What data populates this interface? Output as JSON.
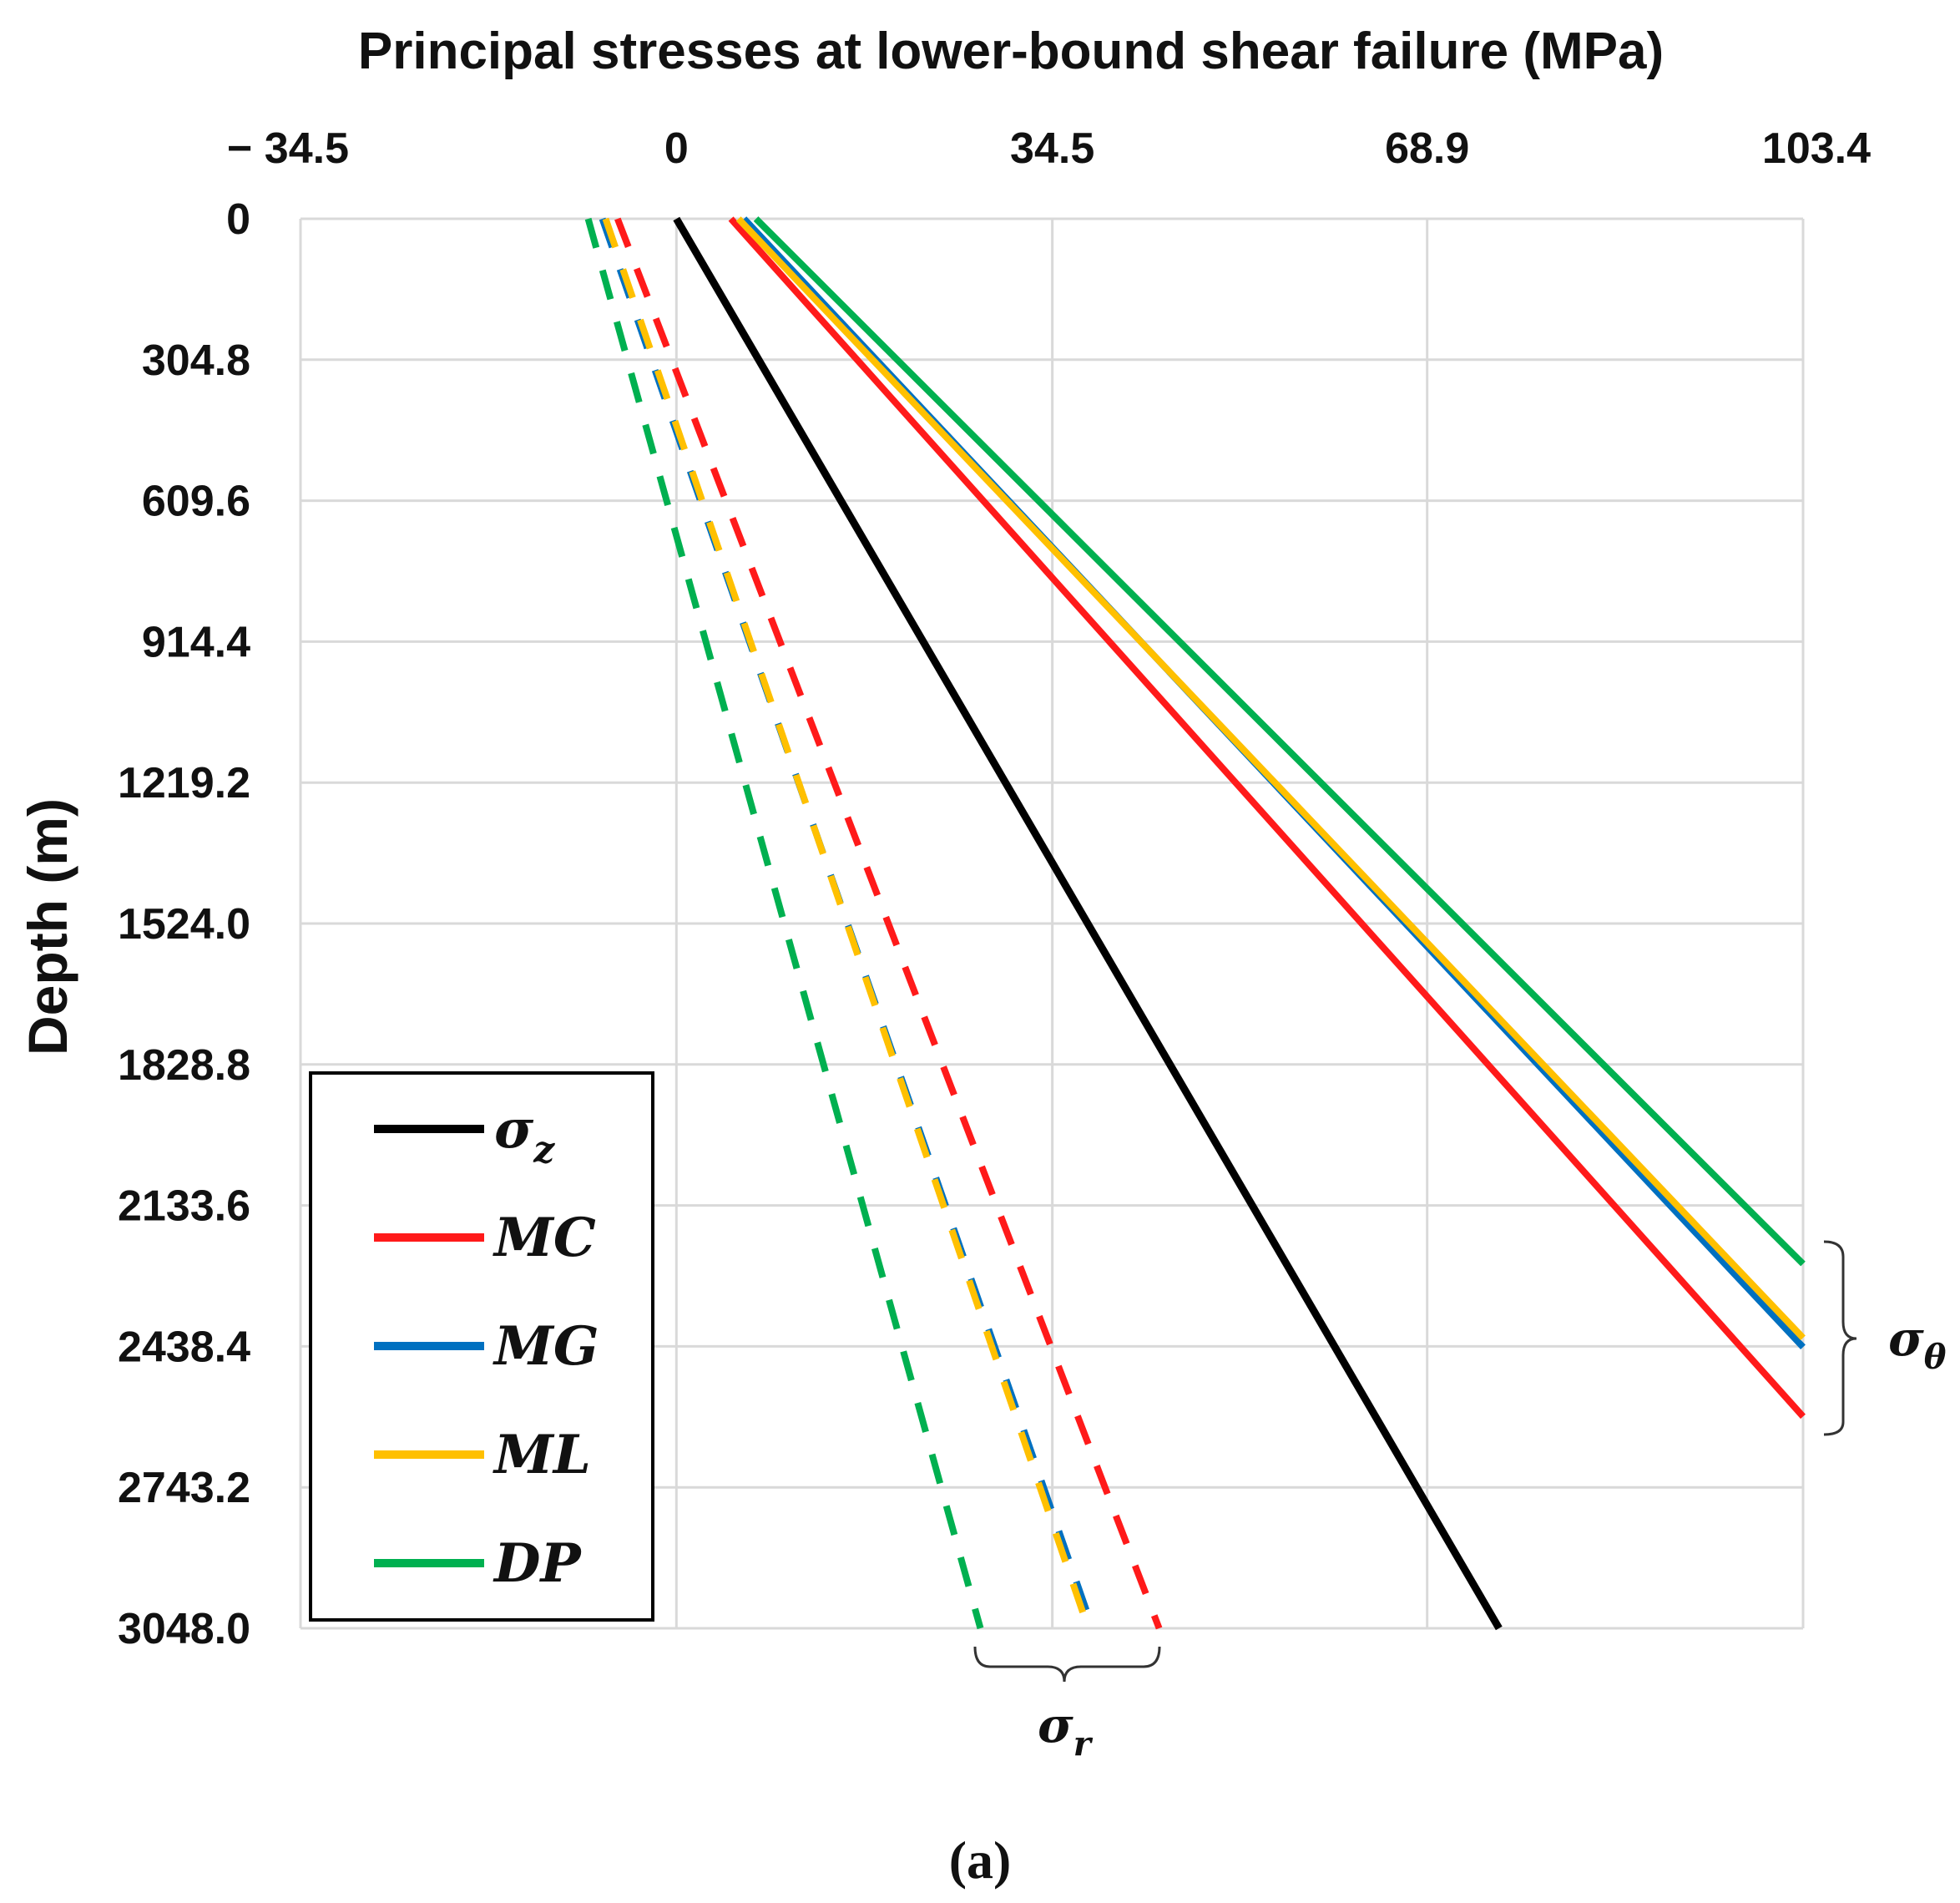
{
  "chart_data": {
    "type": "line",
    "title": "Principal stresses at lower-bound shear failure (MPa)",
    "xlabel": "Principal stresses at lower-bound shear failure (MPa)",
    "ylabel": "Depth (m)",
    "caption": "(a)",
    "xlim": [
      -34.5,
      103.4
    ],
    "ylim": [
      0,
      3048.0
    ],
    "x_ticks": [
      "− 34.5",
      "0",
      "34.5",
      "68.9",
      "103.4"
    ],
    "x_tick_values": [
      -34.5,
      0,
      34.5,
      68.9,
      103.4
    ],
    "y_ticks": [
      "0",
      "304.8",
      "609.6",
      "914.4",
      "1219.2",
      "1524.0",
      "1828.8",
      "2133.6",
      "2438.4",
      "2743.2",
      "3048.0"
    ],
    "y_tick_values": [
      0,
      304.8,
      609.6,
      914.4,
      1219.2,
      1524.0,
      1828.8,
      2133.6,
      2438.4,
      2743.2,
      3048.0
    ],
    "grid": true,
    "y_inverted": true,
    "colors": {
      "sigma_z": "#000000",
      "MC": "#ff1a1a",
      "MG": "#0070c0",
      "ML": "#ffc000",
      "DP": "#00b050"
    },
    "legend": {
      "position": "bottom-left",
      "entries": [
        {
          "key": "sigma_z",
          "base": "σ",
          "sub": "z"
        },
        {
          "key": "MC",
          "label": "MC"
        },
        {
          "key": "MG",
          "label": "MG"
        },
        {
          "key": "ML",
          "label": "ML"
        },
        {
          "key": "DP",
          "label": "DP"
        }
      ]
    },
    "series": [
      {
        "name": "σz",
        "key": "sigma_z",
        "kind": "solid",
        "x": [
          0.0,
          75.5
        ],
        "y": [
          0,
          3048.0
        ]
      },
      {
        "name": "σθ MC",
        "key": "MC",
        "kind": "solid",
        "x": [
          5.0,
          103.4
        ],
        "y": [
          0,
          2590
        ]
      },
      {
        "name": "σθ MG",
        "key": "MG",
        "kind": "solid",
        "x": [
          6.2,
          103.4
        ],
        "y": [
          0,
          2440
        ]
      },
      {
        "name": "σθ ML",
        "key": "ML",
        "kind": "solid",
        "x": [
          5.7,
          103.4
        ],
        "y": [
          0,
          2420
        ]
      },
      {
        "name": "σθ DP",
        "key": "DP",
        "kind": "solid",
        "x": [
          7.3,
          103.4
        ],
        "y": [
          0,
          2260
        ]
      },
      {
        "name": "σr MC",
        "key": "MC",
        "kind": "dashed",
        "x": [
          -5.4,
          44.3
        ],
        "y": [
          0,
          3048.0
        ]
      },
      {
        "name": "σr MG",
        "key": "MG",
        "kind": "dashed",
        "x": [
          -6.8,
          38.2
        ],
        "y": [
          0,
          3048.0
        ]
      },
      {
        "name": "σr ML",
        "key": "ML",
        "kind": "dashed",
        "x": [
          -6.5,
          37.8
        ],
        "y": [
          0,
          3048.0
        ]
      },
      {
        "name": "σr DP",
        "key": "DP",
        "kind": "dashed",
        "x": [
          -8.1,
          27.9
        ],
        "y": [
          0,
          3048.0
        ]
      }
    ],
    "annotations": [
      {
        "name": "sigma-theta",
        "base": "σ",
        "sub": "θ",
        "target": "solid σθ group",
        "brace_y": [
          2220,
          2630
        ]
      },
      {
        "name": "sigma-r",
        "base": "σ",
        "sub": "r",
        "target": "dashed σr group",
        "brace_x": [
          27.3,
          44.3
        ]
      }
    ]
  }
}
